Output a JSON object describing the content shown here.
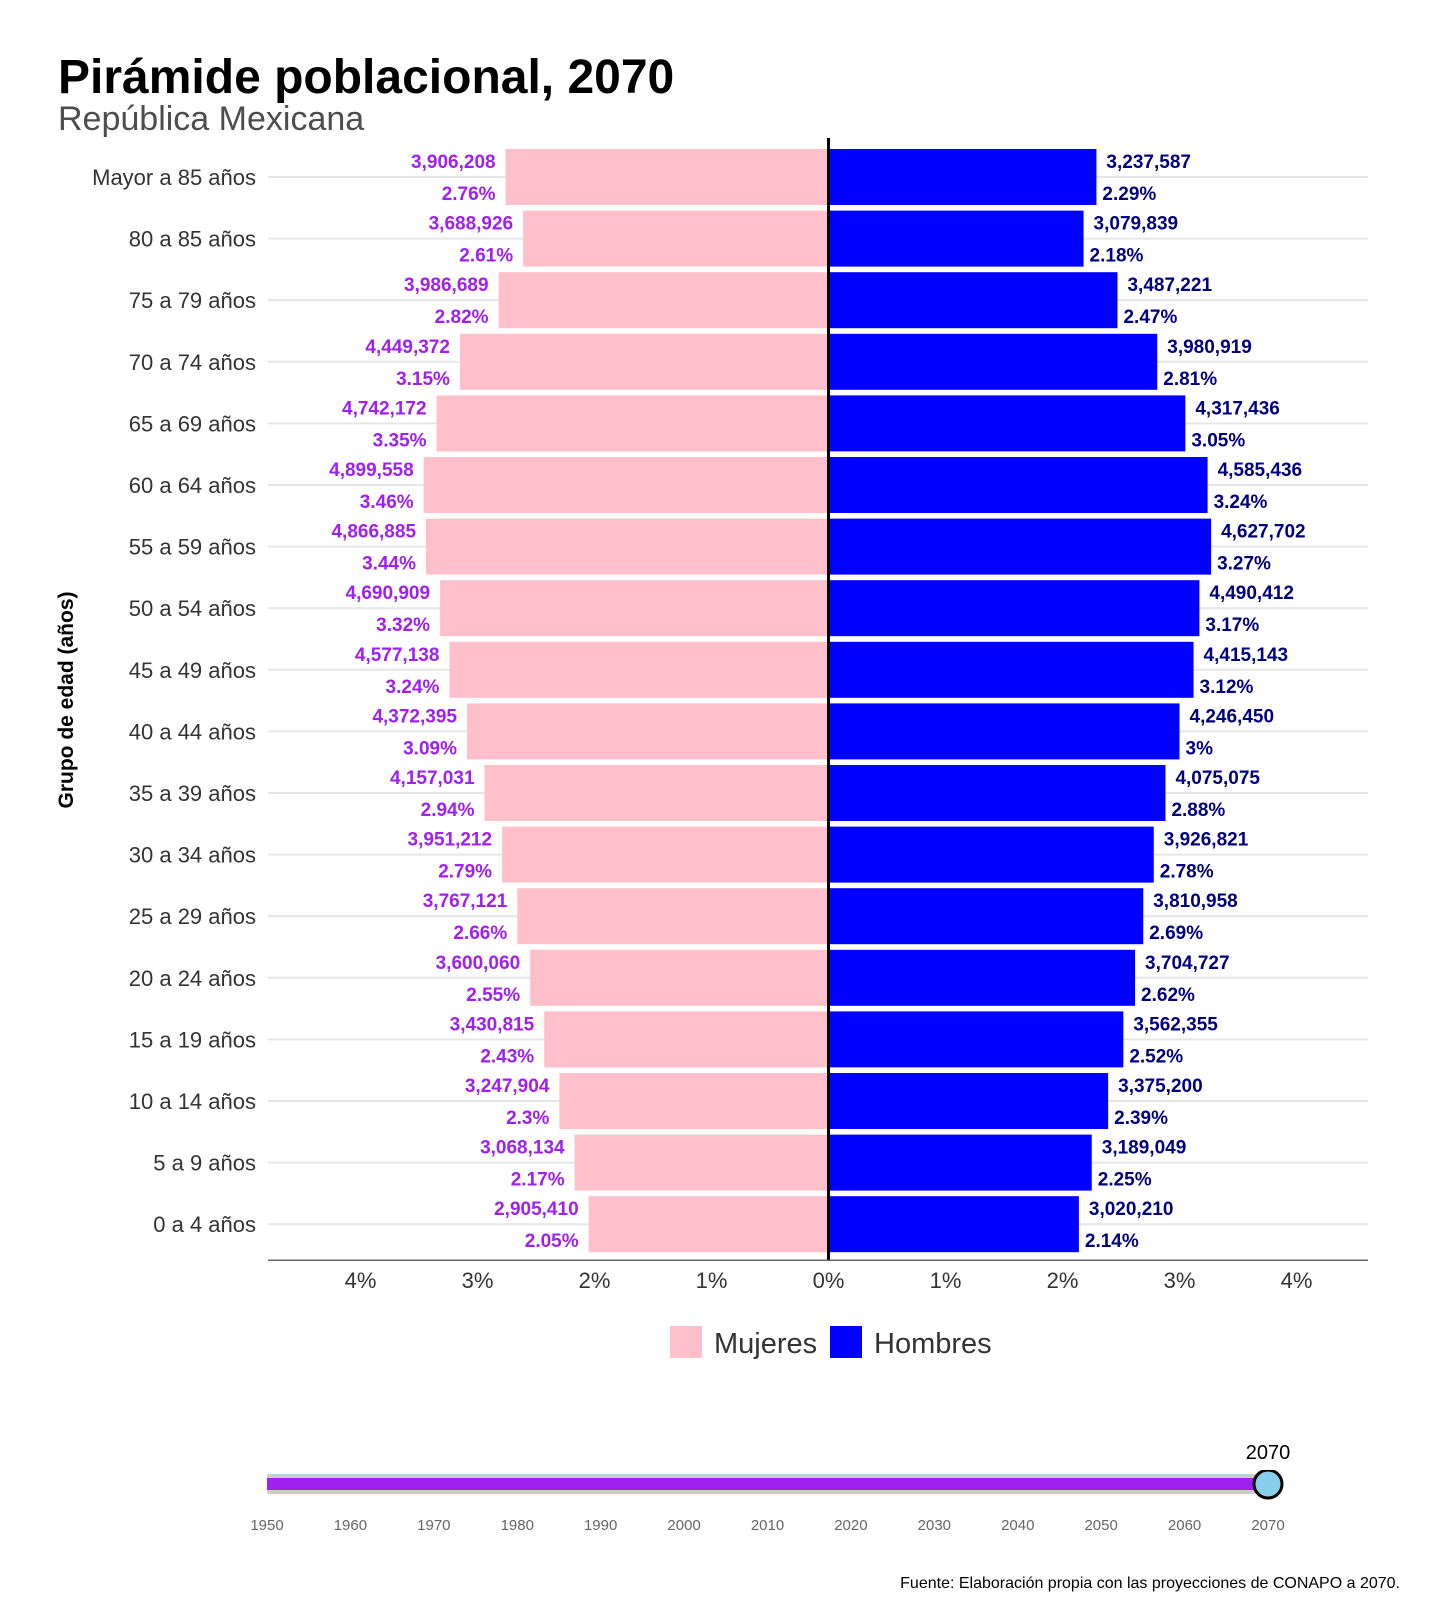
{
  "title": "Pirámide poblacional, 2070",
  "subtitle": "República Mexicana",
  "source": "Fuente: Elaboración propia con las proyecciones de CONAPO a 2070.",
  "colors": {
    "mujeres_bar": "#FFC0CB",
    "hombres_bar": "#0000FF",
    "mujeres_label": "#A020F0",
    "hombres_label": "#000080",
    "slider_track": "#A020F0",
    "slider_knob": "#87CEEB"
  },
  "chart_data": {
    "type": "bar",
    "orientation": "horizontal-pyramid",
    "ylabel": "Grupo de edad (años)",
    "xlabel": "",
    "xlim": [
      -4.8,
      4.8
    ],
    "x_ticks": [
      -4,
      -3,
      -2,
      -1,
      0,
      1,
      2,
      3,
      4
    ],
    "x_tick_labels": [
      "4%",
      "3%",
      "2%",
      "1%",
      "0%",
      "1%",
      "2%",
      "3%",
      "4%"
    ],
    "legend": [
      "Mujeres",
      "Hombres"
    ],
    "legend_position": "bottom",
    "categories": [
      "Mayor a 85 años",
      "80 a 85 años",
      "75 a 79 años",
      "70 a 74 años",
      "65 a 69 años",
      "60 a 64 años",
      "55 a 59 años",
      "50 a 54 años",
      "45 a 49 años",
      "40 a 44 años",
      "35 a 39 años",
      "30 a 34 años",
      "25 a 29 años",
      "20 a 24 años",
      "15 a 19 años",
      "10 a 14 años",
      "5 a 9 años",
      "0 a 4 años"
    ],
    "series": [
      {
        "name": "Mujeres",
        "percent": [
          2.76,
          2.61,
          2.82,
          3.15,
          3.35,
          3.46,
          3.44,
          3.32,
          3.24,
          3.09,
          2.94,
          2.79,
          2.66,
          2.55,
          2.43,
          2.3,
          2.17,
          2.05
        ],
        "count_labels": [
          "3,906,208",
          "3,688,926",
          "3,986,689",
          "4,449,372",
          "4,742,172",
          "4,899,558",
          "4,866,885",
          "4,690,909",
          "4,577,138",
          "4,372,395",
          "4,157,031",
          "3,951,212",
          "3,767,121",
          "3,600,060",
          "3,430,815",
          "3,247,904",
          "3,068,134",
          "2,905,410"
        ],
        "percent_labels": [
          "2.76%",
          "2.61%",
          "2.82%",
          "3.15%",
          "3.35%",
          "3.46%",
          "3.44%",
          "3.32%",
          "3.24%",
          "3.09%",
          "2.94%",
          "2.79%",
          "2.66%",
          "2.55%",
          "2.43%",
          "2.3%",
          "2.17%",
          "2.05%"
        ]
      },
      {
        "name": "Hombres",
        "percent": [
          2.29,
          2.18,
          2.47,
          2.81,
          3.05,
          3.24,
          3.27,
          3.17,
          3.12,
          3.0,
          2.88,
          2.78,
          2.69,
          2.62,
          2.52,
          2.39,
          2.25,
          2.14
        ],
        "count_labels": [
          "3,237,587",
          "3,079,839",
          "3,487,221",
          "3,980,919",
          "4,317,436",
          "4,585,436",
          "4,627,702",
          "4,490,412",
          "4,415,143",
          "4,246,450",
          "4,075,075",
          "3,926,821",
          "3,810,958",
          "3,704,727",
          "3,562,355",
          "3,375,200",
          "3,189,049",
          "3,020,210"
        ],
        "percent_labels": [
          "2.29%",
          "2.18%",
          "2.47%",
          "2.81%",
          "3.05%",
          "3.24%",
          "3.27%",
          "3.17%",
          "3.12%",
          "3%",
          "2.88%",
          "2.78%",
          "2.69%",
          "2.62%",
          "2.52%",
          "2.39%",
          "2.25%",
          "2.14%"
        ]
      }
    ]
  },
  "slider": {
    "years": [
      "1950",
      "1960",
      "1970",
      "1980",
      "1990",
      "2000",
      "2010",
      "2020",
      "2030",
      "2040",
      "2050",
      "2060",
      "2070"
    ],
    "min": 1950,
    "max": 2070,
    "value": 2070,
    "value_label": "2070"
  }
}
